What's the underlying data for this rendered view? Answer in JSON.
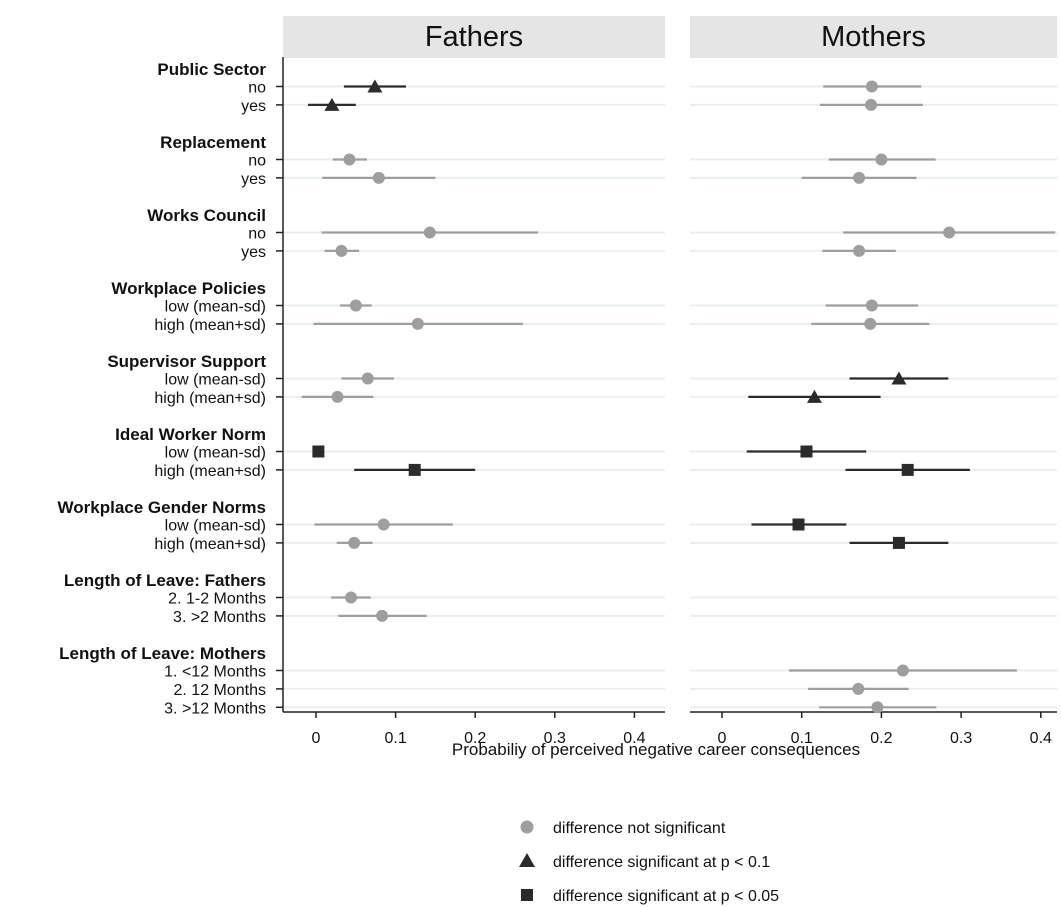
{
  "chart_data": {
    "type": "scatter",
    "subtype": "coefficient-plot with confidence intervals",
    "panels": [
      "Fathers",
      "Mothers"
    ],
    "xlabel": "Probabiliy of perceived negative career consequences",
    "xlim": [
      -0.04,
      0.42
    ],
    "xticks": [
      0,
      0.1,
      0.2,
      0.3,
      0.4
    ],
    "xtick_labels": [
      "0",
      "0.1",
      "0.2",
      "0.3",
      "0.4"
    ],
    "grid": "horizontal reference lines at each level",
    "legend_position": "bottom-center",
    "legend": [
      {
        "marker": "circle",
        "label": "difference not significant",
        "color": "#9e9e9e"
      },
      {
        "marker": "triangle",
        "label": "difference significant at p < 0.1",
        "color": "#2b2b2b"
      },
      {
        "marker": "square",
        "label": "difference significant at p < 0.05",
        "color": "#2b2b2b"
      }
    ],
    "groups": [
      {
        "title": "Public Sector",
        "levels": [
          {
            "label": "no",
            "fathers": {
              "est": 0.074,
              "lo": 0.035,
              "hi": 0.113,
              "sig": "p<0.1"
            },
            "mothers": {
              "est": 0.188,
              "lo": 0.127,
              "hi": 0.25,
              "sig": "ns"
            }
          },
          {
            "label": "yes",
            "fathers": {
              "est": 0.02,
              "lo": -0.01,
              "hi": 0.05,
              "sig": "p<0.1"
            },
            "mothers": {
              "est": 0.187,
              "lo": 0.123,
              "hi": 0.252,
              "sig": "ns"
            }
          }
        ]
      },
      {
        "title": "Replacement",
        "levels": [
          {
            "label": "no",
            "fathers": {
              "est": 0.042,
              "lo": 0.021,
              "hi": 0.064,
              "sig": "ns"
            },
            "mothers": {
              "est": 0.2,
              "lo": 0.134,
              "hi": 0.268,
              "sig": "ns"
            }
          },
          {
            "label": "yes",
            "fathers": {
              "est": 0.079,
              "lo": 0.008,
              "hi": 0.15,
              "sig": "ns"
            },
            "mothers": {
              "est": 0.172,
              "lo": 0.1,
              "hi": 0.244,
              "sig": "ns"
            }
          }
        ]
      },
      {
        "title": "Works Council",
        "levels": [
          {
            "label": "no",
            "fathers": {
              "est": 0.143,
              "lo": 0.007,
              "hi": 0.279,
              "sig": "ns"
            },
            "mothers": {
              "est": 0.285,
              "lo": 0.152,
              "hi": 0.418,
              "sig": "ns"
            }
          },
          {
            "label": "yes",
            "fathers": {
              "est": 0.032,
              "lo": 0.011,
              "hi": 0.054,
              "sig": "ns"
            },
            "mothers": {
              "est": 0.172,
              "lo": 0.126,
              "hi": 0.218,
              "sig": "ns"
            }
          }
        ]
      },
      {
        "title": "Workplace Policies",
        "levels": [
          {
            "label": "low (mean-sd)",
            "fathers": {
              "est": 0.05,
              "lo": 0.03,
              "hi": 0.07,
              "sig": "ns"
            },
            "mothers": {
              "est": 0.188,
              "lo": 0.13,
              "hi": 0.246,
              "sig": "ns"
            }
          },
          {
            "label": "high (mean+sd)",
            "fathers": {
              "est": 0.128,
              "lo": -0.003,
              "hi": 0.26,
              "sig": "ns"
            },
            "mothers": {
              "est": 0.186,
              "lo": 0.112,
              "hi": 0.26,
              "sig": "ns"
            }
          }
        ]
      },
      {
        "title": "Supervisor Support",
        "levels": [
          {
            "label": "low (mean-sd)",
            "fathers": {
              "est": 0.065,
              "lo": 0.032,
              "hi": 0.098,
              "sig": "ns"
            },
            "mothers": {
              "est": 0.222,
              "lo": 0.16,
              "hi": 0.284,
              "sig": "p<0.1"
            }
          },
          {
            "label": "high (mean+sd)",
            "fathers": {
              "est": 0.027,
              "lo": -0.018,
              "hi": 0.072,
              "sig": "ns"
            },
            "mothers": {
              "est": 0.116,
              "lo": 0.033,
              "hi": 0.199,
              "sig": "p<0.1"
            }
          }
        ]
      },
      {
        "title": "Ideal Worker Norm",
        "levels": [
          {
            "label": "low (mean-sd)",
            "fathers": {
              "est": 0.003,
              "lo": 0.001,
              "hi": 0.005,
              "sig": "p<0.05"
            },
            "mothers": {
              "est": 0.106,
              "lo": 0.031,
              "hi": 0.181,
              "sig": "p<0.05"
            }
          },
          {
            "label": "high (mean+sd)",
            "fathers": {
              "est": 0.124,
              "lo": 0.048,
              "hi": 0.2,
              "sig": "p<0.05"
            },
            "mothers": {
              "est": 0.233,
              "lo": 0.155,
              "hi": 0.311,
              "sig": "p<0.05"
            }
          }
        ]
      },
      {
        "title": "Workplace Gender Norms",
        "levels": [
          {
            "label": "low (mean-sd)",
            "fathers": {
              "est": 0.085,
              "lo": -0.002,
              "hi": 0.172,
              "sig": "ns"
            },
            "mothers": {
              "est": 0.096,
              "lo": 0.037,
              "hi": 0.156,
              "sig": "p<0.05"
            }
          },
          {
            "label": "high (mean+sd)",
            "fathers": {
              "est": 0.048,
              "lo": 0.026,
              "hi": 0.071,
              "sig": "ns"
            },
            "mothers": {
              "est": 0.222,
              "lo": 0.16,
              "hi": 0.284,
              "sig": "p<0.05"
            }
          }
        ]
      },
      {
        "title": "Length of Leave: Fathers",
        "levels": [
          {
            "label": "2. 1-2 Months",
            "fathers": {
              "est": 0.044,
              "lo": 0.019,
              "hi": 0.069,
              "sig": "ns"
            },
            "mothers": null
          },
          {
            "label": "3. >2 Months",
            "fathers": {
              "est": 0.083,
              "lo": 0.028,
              "hi": 0.139,
              "sig": "ns"
            },
            "mothers": null
          }
        ]
      },
      {
        "title": "Length of Leave: Mothers",
        "levels": [
          {
            "label": "1. <12 Months",
            "fathers": null,
            "mothers": {
              "est": 0.227,
              "lo": 0.084,
              "hi": 0.37,
              "sig": "ns"
            }
          },
          {
            "label": "2. 12 Months",
            "fathers": null,
            "mothers": {
              "est": 0.171,
              "lo": 0.108,
              "hi": 0.234,
              "sig": "ns"
            }
          },
          {
            "label": "3. >12 Months",
            "fathers": null,
            "mothers": {
              "est": 0.195,
              "lo": 0.122,
              "hi": 0.269,
              "sig": "ns"
            }
          }
        ]
      }
    ]
  },
  "colors": {
    "not_significant": "#9e9e9e",
    "significant": "#2b2b2b",
    "header_bg": "#e5e5e5",
    "reference_line": "#e6f0f0",
    "axis": "#222222"
  }
}
